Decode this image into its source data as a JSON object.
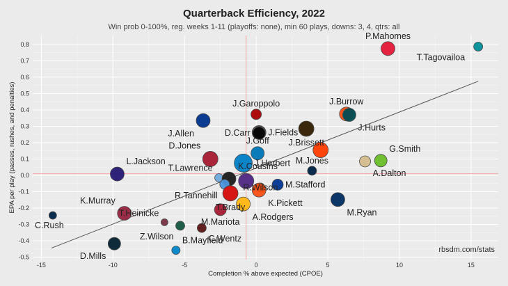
{
  "chart_data": {
    "type": "scatter",
    "title": "Quarterback Efficiency, 2022",
    "subtitle": "Win prob 0-100%, reg. weeks 1-11 (playoffs: none), min 60 plays, downs: 3, 4, qtrs: all",
    "xlabel": "Completion % above expected (CPOE)",
    "ylabel": "EPA per play (passes, rushes, and penalties)",
    "caption": "rbsdm.com/stats",
    "xlim": [
      -15.6,
      16.9
    ],
    "ylim": [
      -0.515,
      0.855
    ],
    "xticks": [
      -15,
      -10,
      -5,
      0,
      5,
      10,
      15
    ],
    "yticks": [
      -0.5,
      -0.4,
      -0.3,
      -0.2,
      -0.1,
      0.0,
      0.1,
      0.2,
      0.3,
      0.4,
      0.5,
      0.6,
      0.7,
      0.8
    ],
    "xtick_labels": [
      "-15",
      "-10",
      "-5",
      "0",
      "5",
      "10",
      "15"
    ],
    "ytick_labels": [
      "-0.5",
      "-0.4",
      "-0.3",
      "-0.2",
      "-0.1",
      "0.0",
      "0.1",
      "0.2",
      "0.3",
      "0.4",
      "0.5",
      "0.6",
      "0.7",
      "0.8"
    ],
    "grid": true,
    "mean_lines": {
      "x": -0.7,
      "y": 0.01,
      "color": "#f4a6a6"
    },
    "trend_line": {
      "x": [
        -14.3,
        15.5
      ],
      "y": [
        -0.445,
        0.575
      ],
      "color": "#555555"
    },
    "points": [
      {
        "name": "P.Mahomes",
        "x": 9.2,
        "y": 0.775,
        "size": 10,
        "color": "#e31837",
        "label_dx": 0,
        "label_dy": -1
      },
      {
        "name": "T.Tagovailoa",
        "x": 15.5,
        "y": 0.787,
        "size": 6.5,
        "color": "#008e97",
        "label_dx": -2,
        "label_dy": 1
      },
      {
        "name": "J.Garoppolo",
        "x": 0.0,
        "y": 0.373,
        "size": 7.5,
        "color": "#aa0000",
        "label_dx": 0,
        "label_dy": -1
      },
      {
        "name": "J.Burrow",
        "x": 6.3,
        "y": 0.375,
        "size": 10,
        "color": "#fb4f14",
        "label_dx": 0,
        "label_dy": -1
      },
      {
        "name": "J.Hurts",
        "x": 6.5,
        "y": 0.37,
        "size": 9.5,
        "color": "#004c54",
        "label_dx": 1,
        "label_dy": 1
      },
      {
        "name": "J.Allen",
        "x": -3.7,
        "y": 0.335,
        "size": 10,
        "color": "#00338d",
        "label_dx": -1,
        "label_dy": 1
      },
      {
        "name": "J.Fields",
        "x": 0.2,
        "y": 0.262,
        "size": 10,
        "color": "#0b162a",
        "label_dx": 1,
        "label_dy": 0
      },
      {
        "name": "D.Carr",
        "x": 0.2,
        "y": 0.26,
        "size": 9.5,
        "color": "#a5acaf",
        "label_dx": -1,
        "label_dy": 0
      },
      {
        "name": "D.Carr",
        "x": 0.2,
        "y": 0.258,
        "size": 9,
        "color": "#000000",
        "label_dx": 0,
        "label_dy": 0
      },
      {
        "name": "J.Brissett",
        "x": 3.5,
        "y": 0.285,
        "size": 11,
        "color": "#311d00",
        "label_dx": 0,
        "label_dy": 1
      },
      {
        "name": "J.Brissett",
        "x": 4.5,
        "y": 0.155,
        "size": 11,
        "color": "#ff3c00",
        "label_dx": 0,
        "label_dy": 0
      },
      {
        "name": "G.Smith",
        "x": 8.7,
        "y": 0.09,
        "size": 9,
        "color": "#69be28",
        "label_dx": 1,
        "label_dy": -1
      },
      {
        "name": "A.Dalton",
        "x": 7.6,
        "y": 0.085,
        "size": 8,
        "color": "#d3bc8d",
        "label_dx": 1,
        "label_dy": 1
      },
      {
        "name": "J.Goff",
        "x": 0.1,
        "y": 0.135,
        "size": 9.5,
        "color": "#0076b6",
        "label_dx": 0,
        "label_dy": -1
      },
      {
        "name": "J.Herbert",
        "x": -0.9,
        "y": 0.075,
        "size": 13,
        "color": "#0080c6",
        "label_dx": 1,
        "label_dy": 0
      },
      {
        "name": "D.Jones",
        "x": -3.2,
        "y": 0.1,
        "size": 11,
        "color": "#a71930",
        "label_dx": -1,
        "label_dy": -1
      },
      {
        "name": "M.Jones",
        "x": 3.9,
        "y": 0.028,
        "size": 6.5,
        "color": "#002244",
        "label_dx": 0,
        "label_dy": -1
      },
      {
        "name": "L.Jackson",
        "x": -9.7,
        "y": 0.008,
        "size": 10,
        "color": "#241773",
        "label_dx": 1,
        "label_dy": -1
      },
      {
        "name": "T.Lawrence",
        "x": -2.6,
        "y": -0.015,
        "size": 6,
        "color": "#6fa8dc",
        "label_dx": -1,
        "label_dy": -1
      },
      {
        "name": "K.Cousins",
        "x": -1.9,
        "y": -0.022,
        "size": 10,
        "color": "#1a1a1a",
        "label_dx": 1,
        "label_dy": -1
      },
      {
        "name": "K.Cousins",
        "x": -0.7,
        "y": -0.035,
        "size": 11,
        "color": "#4f2683",
        "label_dx": 0,
        "label_dy": 0
      },
      {
        "name": "R.Tannehill",
        "x": -2.2,
        "y": -0.055,
        "size": 7,
        "color": "#4b92db",
        "label_dx": -1,
        "label_dy": 1
      },
      {
        "name": "M.Stafford",
        "x": 1.5,
        "y": -0.057,
        "size": 8,
        "color": "#003594",
        "label_dx": 1,
        "label_dy": 0
      },
      {
        "name": "R.Wilson",
        "x": 0.3,
        "y": -0.075,
        "size": 6.5,
        "color": "#000000",
        "label_dx": 0,
        "label_dy": 0
      },
      {
        "name": "K.Pickett",
        "x": 0.2,
        "y": -0.09,
        "size": 10,
        "color": "#fb4f14",
        "label_dx": 1,
        "label_dy": 1
      },
      {
        "name": "T.Brady",
        "x": -1.8,
        "y": -0.11,
        "size": 11,
        "color": "#d50a0a",
        "label_dx": 0,
        "label_dy": 1
      },
      {
        "name": "A.Rodgers",
        "x": -0.9,
        "y": -0.175,
        "size": 10,
        "color": "#ffb612",
        "label_dx": 1,
        "label_dy": 1
      },
      {
        "name": "M.Ryan",
        "x": 5.7,
        "y": -0.148,
        "size": 10,
        "color": "#002c5f",
        "label_dx": 1,
        "label_dy": 1
      },
      {
        "name": "K.Murray",
        "x": -9.2,
        "y": -0.232,
        "size": 10,
        "color": "#97233f",
        "label_dx": -1,
        "label_dy": -1
      },
      {
        "name": "M.Mariota",
        "x": -2.5,
        "y": -0.21,
        "size": 8.5,
        "color": "#a71930",
        "label_dx": 0,
        "label_dy": 1
      },
      {
        "name": "T.Heinicke",
        "x": -6.4,
        "y": -0.287,
        "size": 5,
        "color": "#773141",
        "label_dx": -1,
        "label_dy": -1
      },
      {
        "name": "Z.Wilson",
        "x": -5.3,
        "y": -0.308,
        "size": 6.5,
        "color": "#125740",
        "label_dx": -1,
        "label_dy": 1
      },
      {
        "name": "C.Wentz",
        "x": -3.8,
        "y": -0.322,
        "size": 6.5,
        "color": "#5a1414",
        "label_dx": 1,
        "label_dy": 1
      },
      {
        "name": "C.Rush",
        "x": -14.2,
        "y": -0.245,
        "size": 5.5,
        "color": "#002244",
        "label_dx": -1,
        "label_dy": 1
      },
      {
        "name": "D.Mills",
        "x": -9.9,
        "y": -0.418,
        "size": 9,
        "color": "#03202f",
        "label_dx": -1,
        "label_dy": 1
      },
      {
        "name": "B.Mayfield",
        "x": -5.6,
        "y": -0.458,
        "size": 6,
        "color": "#0085ca",
        "label_dx": 1,
        "label_dy": -1
      }
    ]
  }
}
